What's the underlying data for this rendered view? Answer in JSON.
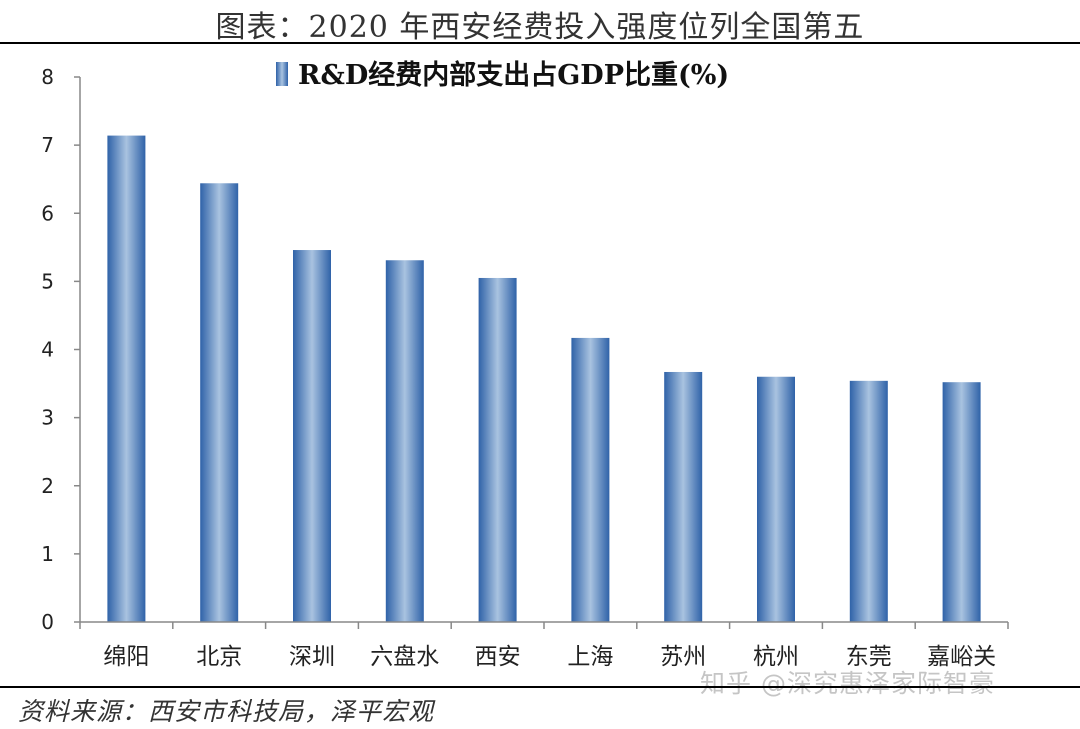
{
  "figure": {
    "title": "图表：2020 年西安经费投入强度位列全国第五",
    "source": "资料来源：西安市科技局，泽平宏观",
    "watermark": "知乎 @深究惠泽家际智豪"
  },
  "colors": {
    "bar_dark": "#2f62a8",
    "bar_light": "#a9c3e0",
    "axis": "#888888"
  },
  "chart_data": {
    "type": "bar",
    "categories": [
      "绵阳",
      "北京",
      "深圳",
      "六盘水",
      "西安",
      "上海",
      "苏州",
      "杭州",
      "东莞",
      "嘉峪关"
    ],
    "series": [
      {
        "name": "R&D经费内部支出占GDP比重(%)",
        "values": [
          7.14,
          6.44,
          5.46,
          5.31,
          5.05,
          4.17,
          3.67,
          3.6,
          3.54,
          3.52
        ]
      }
    ],
    "ylim": [
      0,
      8
    ],
    "yticks": [
      0,
      1,
      2,
      3,
      4,
      5,
      6,
      7,
      8
    ],
    "grid": false,
    "legend_position": "top"
  }
}
